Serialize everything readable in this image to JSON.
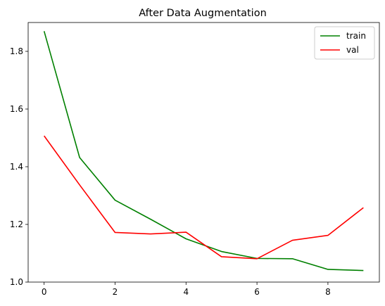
{
  "chart_data": {
    "type": "line",
    "title": "After Data Augmentation",
    "xlabel": "",
    "ylabel": "",
    "x": [
      0,
      1,
      2,
      3,
      4,
      5,
      6,
      7,
      8,
      9
    ],
    "xlim": [
      -0.45,
      9.45
    ],
    "ylim": [
      1.0,
      1.9
    ],
    "xticks": [
      0,
      2,
      4,
      6,
      8
    ],
    "yticks": [
      1.0,
      1.2,
      1.4,
      1.6,
      1.8
    ],
    "grid": false,
    "legend": "top-right",
    "series": [
      {
        "name": "train",
        "color": "#008000",
        "values": [
          1.87,
          1.432,
          1.284,
          1.218,
          1.15,
          1.106,
          1.082,
          1.081,
          1.044,
          1.04
        ]
      },
      {
        "name": "val",
        "color": "#ff0000",
        "values": [
          1.507,
          1.337,
          1.172,
          1.167,
          1.173,
          1.088,
          1.081,
          1.145,
          1.162,
          1.258
        ]
      }
    ]
  }
}
